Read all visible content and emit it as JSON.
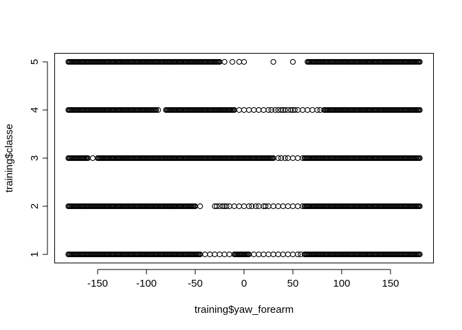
{
  "chart_data": {
    "type": "scatter",
    "xlabel": "training$yaw_forearm",
    "ylabel": "training$classe",
    "xlim": [
      -180,
      180
    ],
    "ylim": [
      1,
      5
    ],
    "x_ticks": [
      -150,
      -100,
      -50,
      0,
      50,
      100,
      150
    ],
    "x_tick_labels": [
      "-150",
      "-100",
      "-50",
      "0",
      "50",
      "100",
      "150"
    ],
    "y_ticks": [
      1,
      2,
      3,
      4,
      5
    ],
    "y_tick_labels": [
      "1",
      "2",
      "3",
      "4",
      "5"
    ],
    "grid": false,
    "series": [
      {
        "y": 1,
        "dense_ranges": [
          [
            -180,
            -45
          ],
          [
            -10,
            5
          ],
          [
            62,
            180
          ]
        ],
        "sparse_points": [
          -40,
          -35,
          -30,
          -25,
          -20,
          -15,
          10,
          15,
          20,
          25,
          30,
          35,
          40,
          45,
          50,
          55,
          58
        ]
      },
      {
        "y": 2,
        "dense_ranges": [
          [
            -180,
            -50
          ],
          [
            62,
            180
          ]
        ],
        "sparse_points": [
          -45,
          -30,
          -28,
          -25,
          -22,
          -20,
          -18,
          -15,
          -10,
          -5,
          0,
          5,
          8,
          12,
          15,
          20,
          22,
          25,
          30,
          35,
          40,
          45,
          50,
          55,
          60
        ]
      },
      {
        "y": 3,
        "dense_ranges": [
          [
            -180,
            -160
          ],
          [
            -150,
            30
          ],
          [
            62,
            180
          ]
        ],
        "sparse_points": [
          -155,
          -135,
          -130,
          -120,
          35,
          38,
          42,
          45,
          50,
          55,
          60
        ]
      },
      {
        "y": 4,
        "dense_ranges": [
          [
            -180,
            -90
          ],
          [
            -80,
            -10
          ],
          [
            82,
            180
          ]
        ],
        "sparse_points": [
          -88,
          -5,
          0,
          5,
          10,
          15,
          20,
          25,
          28,
          32,
          35,
          38,
          40,
          42,
          45,
          48,
          50,
          52,
          55,
          60,
          65,
          70,
          75,
          78
        ]
      },
      {
        "y": 5,
        "dense_ranges": [
          [
            -180,
            -25
          ],
          [
            65,
            180
          ]
        ],
        "sparse_points": [
          -20,
          -12,
          -5,
          0,
          30,
          50
        ]
      }
    ]
  }
}
